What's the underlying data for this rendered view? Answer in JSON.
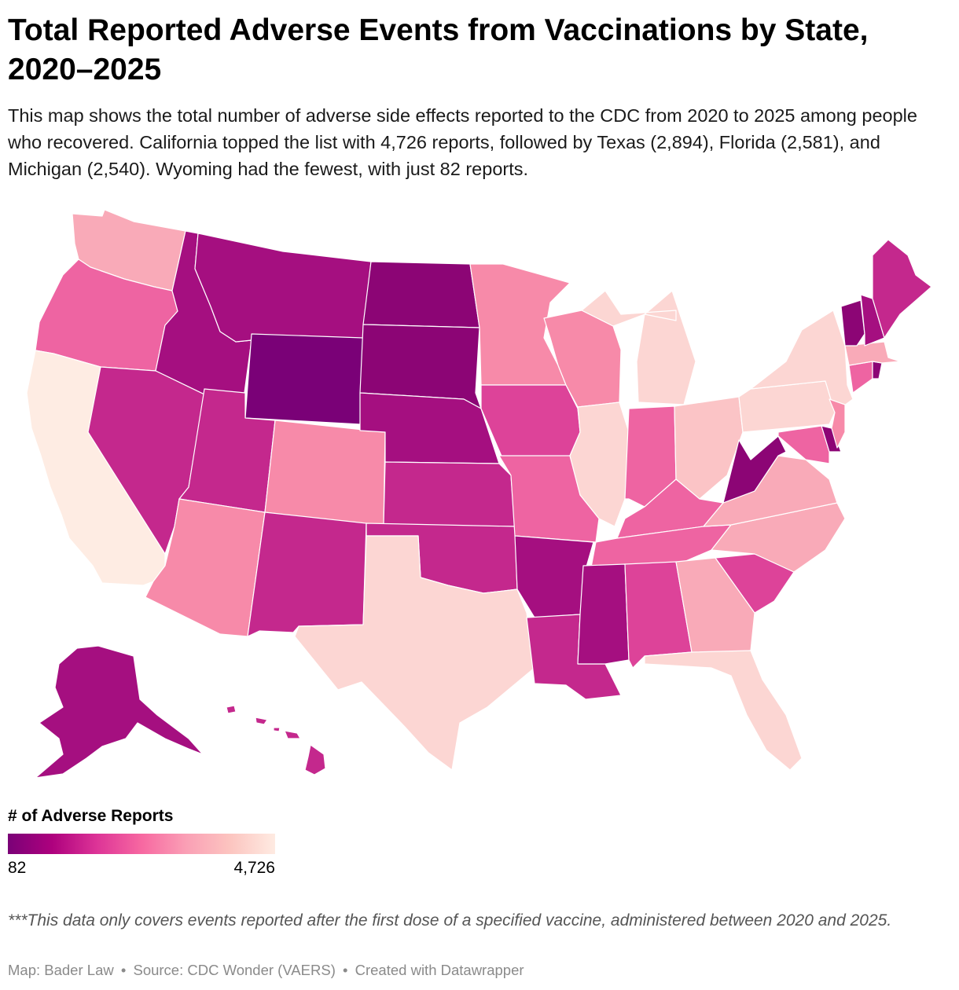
{
  "title": "Total Reported Adverse Events from Vaccinations by State, 2020–2025",
  "description": "This map shows the total number of adverse side effects reported to the CDC from 2020 to 2025 among people who recovered. California topped the list with 4,726 reports, followed by Texas (2,894), Florida (2,581), and Michigan (2,540). Wyoming had the fewest, with just 82 reports.",
  "legend": {
    "title": "# of Adverse Reports",
    "min_label": "82",
    "max_label": "4,726",
    "gradient": [
      "#7a0177",
      "#ae017e",
      "#dd3497",
      "#f768a1",
      "#fa9fb5",
      "#fcc5c0",
      "#feebe2"
    ]
  },
  "note": "***This data only covers events reported after the first dose of a specified vaccine, administered between 2020 and 2025.",
  "footer": {
    "map_by": "Map: Bader Law",
    "source": "Source: CDC Wonder (VAERS)",
    "created": "Created with Datawrapper",
    "separator": "•"
  },
  "colors": {
    "c1": "#7a0177",
    "c2": "#8c0575",
    "c3": "#a50f80",
    "c4": "#c4288d",
    "c5": "#dd4399",
    "c6": "#ee64a2",
    "c7": "#f78aa9",
    "c8": "#f9aab8",
    "c9": "#fbc4c6",
    "c10": "#fcd6d3",
    "c11": "#feece3"
  },
  "states": [
    {
      "name": "Washington",
      "color": "c8"
    },
    {
      "name": "Oregon",
      "color": "c6"
    },
    {
      "name": "California",
      "color": "c11"
    },
    {
      "name": "Idaho",
      "color": "c3"
    },
    {
      "name": "Nevada",
      "color": "c4"
    },
    {
      "name": "Montana",
      "color": "c3"
    },
    {
      "name": "Wyoming",
      "color": "c1"
    },
    {
      "name": "Utah",
      "color": "c4"
    },
    {
      "name": "Arizona",
      "color": "c7"
    },
    {
      "name": "Colorado",
      "color": "c7"
    },
    {
      "name": "New Mexico",
      "color": "c4"
    },
    {
      "name": "North Dakota",
      "color": "c2"
    },
    {
      "name": "South Dakota",
      "color": "c2"
    },
    {
      "name": "Nebraska",
      "color": "c3"
    },
    {
      "name": "Kansas",
      "color": "c4"
    },
    {
      "name": "Oklahoma",
      "color": "c4"
    },
    {
      "name": "Texas",
      "color": "c10"
    },
    {
      "name": "Minnesota",
      "color": "c7"
    },
    {
      "name": "Iowa",
      "color": "c5"
    },
    {
      "name": "Missouri",
      "color": "c6"
    },
    {
      "name": "Arkansas",
      "color": "c3"
    },
    {
      "name": "Louisiana",
      "color": "c4"
    },
    {
      "name": "Wisconsin",
      "color": "c7"
    },
    {
      "name": "Illinois",
      "color": "c10"
    },
    {
      "name": "Michigan",
      "color": "c10"
    },
    {
      "name": "Indiana",
      "color": "c6"
    },
    {
      "name": "Ohio",
      "color": "c9"
    },
    {
      "name": "Kentucky",
      "color": "c6"
    },
    {
      "name": "Tennessee",
      "color": "c6"
    },
    {
      "name": "Mississippi",
      "color": "c3"
    },
    {
      "name": "Alabama",
      "color": "c5"
    },
    {
      "name": "Georgia",
      "color": "c8"
    },
    {
      "name": "Florida",
      "color": "c10"
    },
    {
      "name": "South Carolina",
      "color": "c5"
    },
    {
      "name": "North Carolina",
      "color": "c8"
    },
    {
      "name": "Virginia",
      "color": "c8"
    },
    {
      "name": "West Virginia",
      "color": "c2"
    },
    {
      "name": "Pennsylvania",
      "color": "c10"
    },
    {
      "name": "New York",
      "color": "c10"
    },
    {
      "name": "Maryland",
      "color": "c6"
    },
    {
      "name": "Delaware",
      "color": "c2"
    },
    {
      "name": "New Jersey",
      "color": "c7"
    },
    {
      "name": "Connecticut",
      "color": "c6"
    },
    {
      "name": "Rhode Island",
      "color": "c2"
    },
    {
      "name": "Massachusetts",
      "color": "c8"
    },
    {
      "name": "Vermont",
      "color": "c2"
    },
    {
      "name": "New Hampshire",
      "color": "c3"
    },
    {
      "name": "Maine",
      "color": "c4"
    },
    {
      "name": "Alaska",
      "color": "c3"
    },
    {
      "name": "Hawaii",
      "color": "c4"
    }
  ]
}
